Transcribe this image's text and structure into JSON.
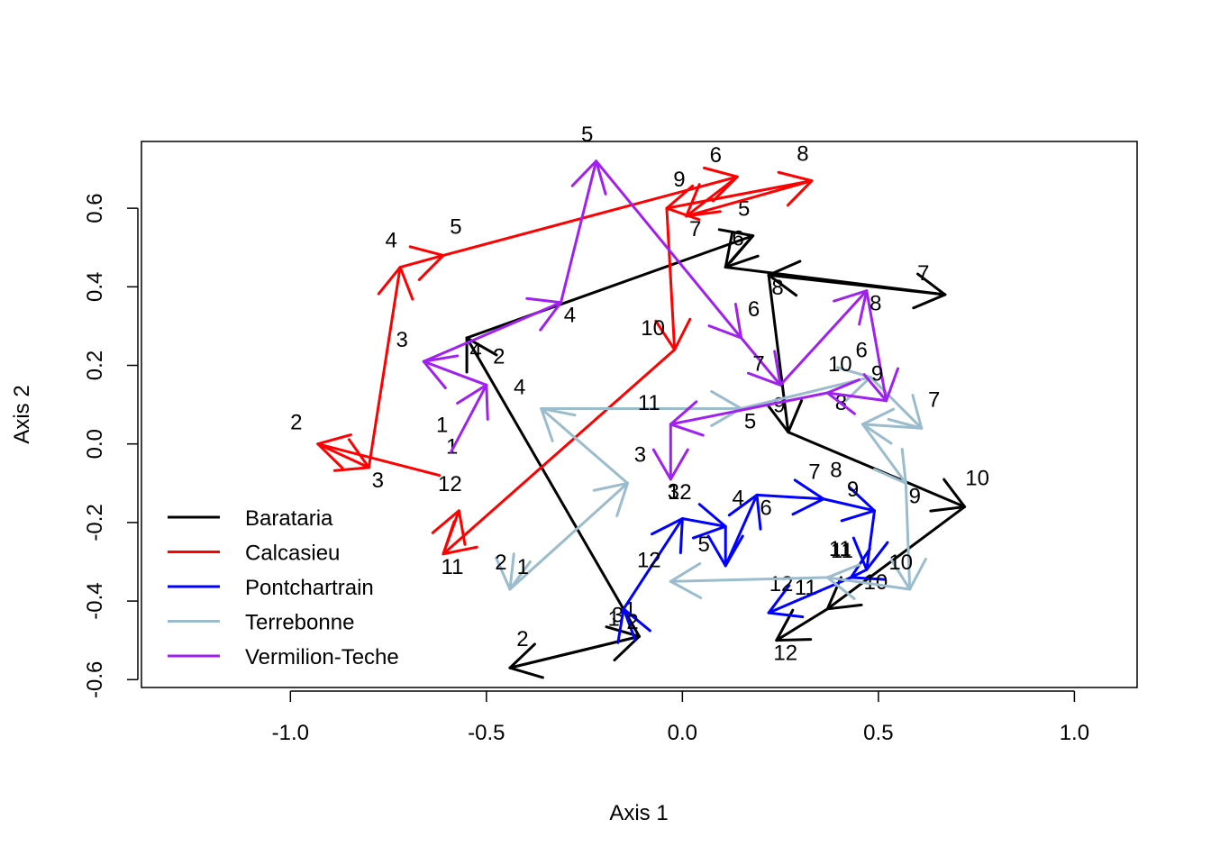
{
  "chart_data": {
    "type": "line",
    "title": "",
    "xlabel": "Axis 1",
    "ylabel": "Axis 2",
    "xlim": [
      -1.38,
      1.16
    ],
    "ylim": [
      -0.62,
      0.77
    ],
    "x_ticks": [
      -1.0,
      -0.5,
      0.0,
      0.5,
      1.0
    ],
    "y_ticks": [
      -0.6,
      -0.4,
      -0.2,
      0.0,
      0.2,
      0.4,
      0.6
    ],
    "x_tick_labels": [
      "-1.0",
      "-0.5",
      "0.0",
      "0.5",
      "1.0"
    ],
    "y_tick_labels": [
      "-0.6",
      "-0.4",
      "-0.2",
      "0.0",
      "0.2",
      "0.4",
      "0.6"
    ],
    "grid": false,
    "legend_position": "bottom-left",
    "series": [
      {
        "name": "Barataria",
        "color": "#000000",
        "points": [
          {
            "label": "1",
            "x": -0.11,
            "y": -0.49
          },
          {
            "label": "2",
            "x": -0.44,
            "y": -0.57
          },
          {
            "label": "3",
            "x": -0.11,
            "y": -0.49
          },
          {
            "label": "4",
            "x": -0.55,
            "y": 0.27
          },
          {
            "label": "5",
            "x": 0.18,
            "y": 0.53
          },
          {
            "label": "6",
            "x": 0.11,
            "y": 0.45
          },
          {
            "label": "7",
            "x": 0.67,
            "y": 0.38
          },
          {
            "label": "8",
            "x": 0.22,
            "y": 0.43
          },
          {
            "label": "9",
            "x": 0.27,
            "y": 0.03
          },
          {
            "label": "10",
            "x": 0.72,
            "y": -0.16
          },
          {
            "label": "11",
            "x": 0.37,
            "y": -0.42
          },
          {
            "label": "12",
            "x": 0.24,
            "y": -0.5
          }
        ]
      },
      {
        "name": "Calcasieu",
        "color": "#ff0000",
        "points": [
          {
            "label": "1",
            "x": -0.62,
            "y": -0.08
          },
          {
            "label": "2",
            "x": -0.93,
            "y": 0.0
          },
          {
            "label": "3",
            "x": -0.8,
            "y": -0.06
          },
          {
            "label": "4",
            "x": -0.72,
            "y": 0.45
          },
          {
            "label": "5",
            "x": -0.61,
            "y": 0.48
          },
          {
            "label": "6",
            "x": 0.14,
            "y": 0.68
          },
          {
            "label": "7",
            "x": 0.01,
            "y": 0.58
          },
          {
            "label": "8",
            "x": 0.33,
            "y": 0.67
          },
          {
            "label": "9",
            "x": -0.04,
            "y": 0.6
          },
          {
            "label": "10",
            "x": -0.02,
            "y": 0.24
          },
          {
            "label": "11",
            "x": -0.61,
            "y": -0.28
          },
          {
            "label": "12",
            "x": -0.57,
            "y": -0.17
          }
        ]
      },
      {
        "name": "Pontchartrain",
        "color": "#0000ff",
        "points": [
          {
            "label": "1",
            "x": -0.12,
            "y": -0.5
          },
          {
            "label": "2",
            "x": -0.15,
            "y": -0.42
          },
          {
            "label": "3",
            "x": 0.0,
            "y": -0.19
          },
          {
            "label": "4",
            "x": 0.11,
            "y": -0.21
          },
          {
            "label": "5",
            "x": 0.11,
            "y": -0.31
          },
          {
            "label": "6",
            "x": 0.19,
            "y": -0.13
          },
          {
            "label": "7",
            "x": 0.36,
            "y": -0.14
          },
          {
            "label": "8",
            "x": 0.36,
            "y": -0.14
          },
          {
            "label": "9",
            "x": 0.49,
            "y": -0.17
          },
          {
            "label": "10",
            "x": 0.47,
            "y": -0.32
          },
          {
            "label": "11",
            "x": 0.43,
            "y": -0.34
          },
          {
            "label": "12",
            "x": 0.22,
            "y": -0.43
          }
        ]
      },
      {
        "name": "Terrebonne",
        "color": "#9bbccc",
        "points": [
          {
            "label": "1",
            "x": -0.43,
            "y": -0.28
          },
          {
            "label": "2",
            "x": -0.44,
            "y": -0.37
          },
          {
            "label": "3",
            "x": -0.14,
            "y": -0.1
          },
          {
            "label": "4",
            "x": -0.36,
            "y": 0.09
          },
          {
            "label": "5",
            "x": 0.15,
            "y": 0.09
          },
          {
            "label": "6",
            "x": 0.48,
            "y": 0.17
          },
          {
            "label": "7",
            "x": 0.61,
            "y": 0.04
          },
          {
            "label": "8",
            "x": 0.46,
            "y": 0.05
          },
          {
            "label": "9",
            "x": 0.57,
            "y": -0.1
          },
          {
            "label": "10",
            "x": 0.58,
            "y": -0.37
          },
          {
            "label": "11",
            "x": 0.37,
            "y": -0.34
          },
          {
            "label": "12",
            "x": -0.03,
            "y": -0.35
          }
        ]
      },
      {
        "name": "Vermilion-Teche",
        "color": "#a020f0",
        "points": [
          {
            "label": "1",
            "x": -0.59,
            "y": -0.02
          },
          {
            "label": "2",
            "x": -0.5,
            "y": 0.15
          },
          {
            "label": "3",
            "x": -0.66,
            "y": 0.21
          },
          {
            "label": "4",
            "x": -0.31,
            "y": 0.36
          },
          {
            "label": "5",
            "x": -0.22,
            "y": 0.72
          },
          {
            "label": "6",
            "x": 0.15,
            "y": 0.27
          },
          {
            "label": "7",
            "x": 0.25,
            "y": 0.15
          },
          {
            "label": "8",
            "x": 0.47,
            "y": 0.39
          },
          {
            "label": "9",
            "x": 0.52,
            "y": 0.11
          },
          {
            "label": "10",
            "x": 0.37,
            "y": 0.13
          },
          {
            "label": "11",
            "x": -0.03,
            "y": 0.05
          },
          {
            "label": "12",
            "x": -0.03,
            "y": -0.09
          }
        ]
      }
    ]
  }
}
